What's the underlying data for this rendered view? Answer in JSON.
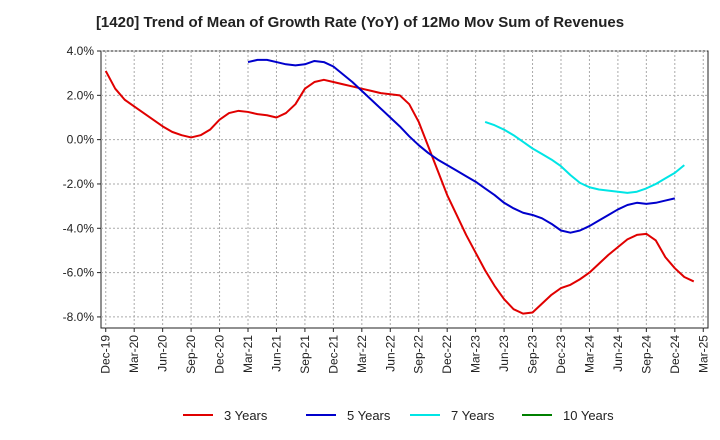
{
  "chart_data": {
    "type": "line",
    "title": "[1420]  Trend of Mean of Growth Rate (YoY) of 12Mo Mov Sum of Revenues",
    "xlabel": "",
    "ylabel": "",
    "ylim": [
      -8.5,
      4.0
    ],
    "yticks": [
      4.0,
      2.0,
      0.0,
      -2.0,
      -4.0,
      -6.0,
      -8.0
    ],
    "ytick_labels": [
      "4.0%",
      "2.0%",
      "0.0%",
      "-2.0%",
      "-4.0%",
      "-6.0%",
      "-8.0%"
    ],
    "xtick_labels": [
      "Dec-19",
      "Mar-20",
      "Jun-20",
      "Sep-20",
      "Dec-20",
      "Mar-21",
      "Jun-21",
      "Sep-21",
      "Dec-21",
      "Mar-22",
      "Jun-22",
      "Sep-22",
      "Dec-22",
      "Mar-23",
      "Jun-23",
      "Sep-23",
      "Dec-23",
      "Mar-24",
      "Jun-24",
      "Sep-24",
      "Dec-24",
      "Mar-25"
    ],
    "x_count": 64,
    "grid": true,
    "legend_position": "bottom",
    "series": [
      {
        "name": "3 Years",
        "color": "#e00000",
        "start": 0,
        "values": [
          3.1,
          2.3,
          1.8,
          1.5,
          1.2,
          0.9,
          0.6,
          0.35,
          0.2,
          0.1,
          0.2,
          0.45,
          0.9,
          1.2,
          1.3,
          1.25,
          1.15,
          1.1,
          1.0,
          1.2,
          1.6,
          2.3,
          2.6,
          2.7,
          2.6,
          2.5,
          2.4,
          2.3,
          2.2,
          2.1,
          2.05,
          2.0,
          1.6,
          0.8,
          -0.3,
          -1.4,
          -2.5,
          -3.4,
          -4.3,
          -5.1,
          -5.9,
          -6.6,
          -7.2,
          -7.65,
          -7.85,
          -7.8,
          -7.4,
          -7.0,
          -6.7,
          -6.55,
          -6.3,
          -6.0,
          -5.6,
          -5.2,
          -4.85,
          -4.5,
          -4.3,
          -4.25,
          -4.55,
          -5.3,
          -5.8,
          -6.2,
          -6.4
        ]
      },
      {
        "name": "5 Years",
        "color": "#0000cc",
        "start": 15,
        "values": [
          3.5,
          3.6,
          3.6,
          3.5,
          3.4,
          3.35,
          3.4,
          3.55,
          3.5,
          3.3,
          2.95,
          2.6,
          2.2,
          1.8,
          1.4,
          1.0,
          0.6,
          0.15,
          -0.25,
          -0.6,
          -0.9,
          -1.15,
          -1.4,
          -1.65,
          -1.9,
          -2.2,
          -2.5,
          -2.85,
          -3.1,
          -3.3,
          -3.4,
          -3.55,
          -3.8,
          -4.1,
          -4.2,
          -4.1,
          -3.9,
          -3.65,
          -3.4,
          -3.15,
          -2.95,
          -2.85,
          -2.9,
          -2.85,
          -2.75,
          -2.65
        ]
      },
      {
        "name": "7 Years",
        "color": "#00e5e5",
        "start": 40,
        "values": [
          0.8,
          0.65,
          0.45,
          0.2,
          -0.1,
          -0.4,
          -0.65,
          -0.9,
          -1.2,
          -1.6,
          -1.95,
          -2.15,
          -2.25,
          -2.3,
          -2.35,
          -2.4,
          -2.35,
          -2.2,
          -2.0,
          -1.75,
          -1.5,
          -1.15
        ]
      },
      {
        "name": "10 Years",
        "color": "#008000",
        "start": 0,
        "values": []
      }
    ]
  }
}
